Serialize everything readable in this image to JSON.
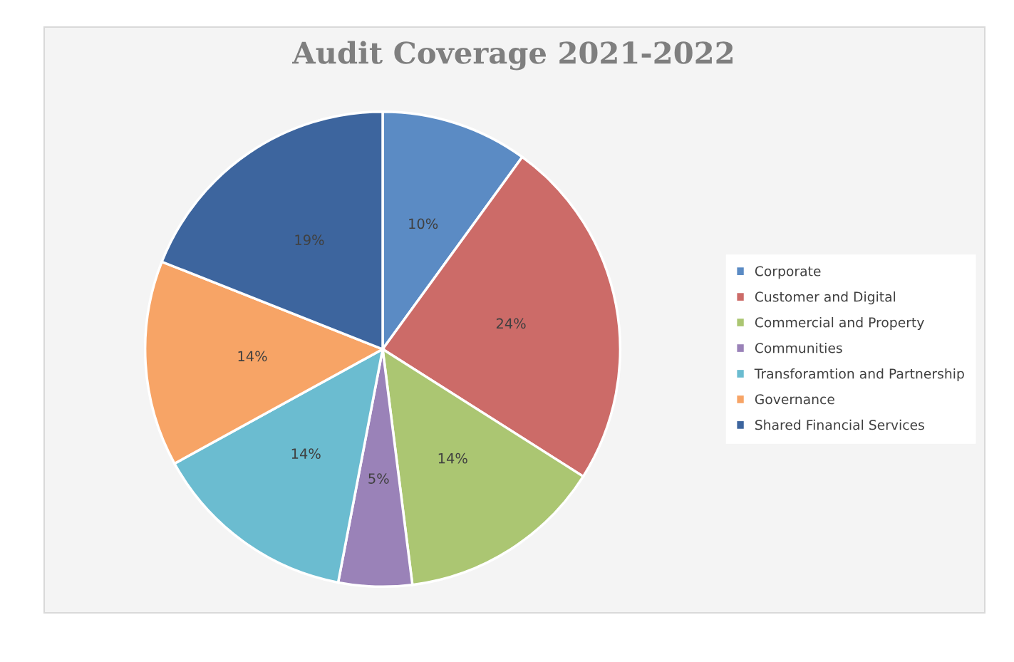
{
  "chart_data": {
    "type": "pie",
    "title": "Audit Coverage 2021-2022",
    "categories": [
      "Corporate",
      "Customer and Digital",
      "Commercial and Property",
      "Communities",
      "Transforamtion and Partnership",
      "Governance",
      "Shared Financial Services"
    ],
    "values": [
      10,
      24,
      14,
      5,
      14,
      14,
      19
    ],
    "value_labels": [
      "10%",
      "24%",
      "14%",
      "5%",
      "14%",
      "14%",
      "19%"
    ],
    "colors": [
      "#5b8bc4",
      "#cc6b68",
      "#abc672",
      "#9a82b8",
      "#6bbcd0",
      "#f7a466",
      "#3d659e"
    ],
    "legend": "right"
  }
}
